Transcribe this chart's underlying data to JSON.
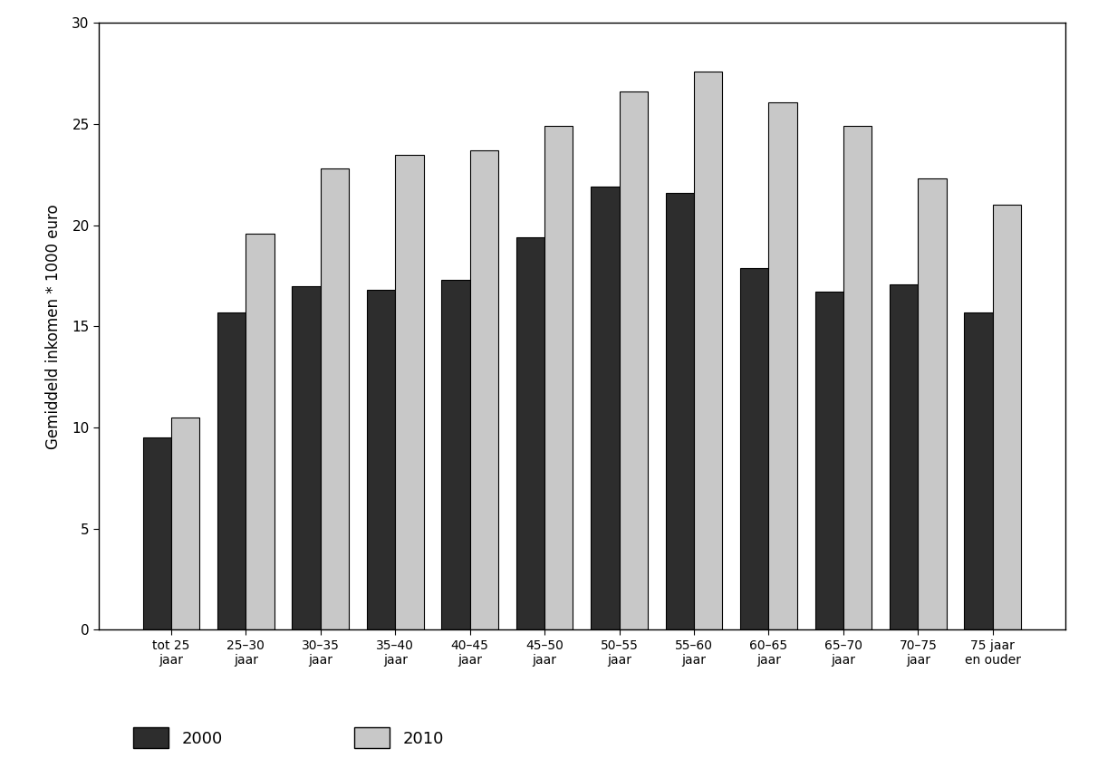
{
  "categories": [
    "tot 25\njaar",
    "25–30\njaar",
    "30–35\njaar",
    "35–40\njaar",
    "40–45\njaar",
    "45–50\njaar",
    "50–55\njaar",
    "55–60\njaar",
    "60–65\njaar",
    "65–70\njaar",
    "70–75\njaar",
    "75 jaar\nen ouder"
  ],
  "values_2000": [
    9.5,
    15.7,
    17.0,
    16.8,
    17.3,
    19.4,
    21.9,
    21.6,
    17.9,
    16.7,
    17.1,
    15.7
  ],
  "values_2010": [
    10.5,
    19.6,
    22.8,
    23.5,
    23.7,
    24.9,
    26.6,
    27.6,
    26.1,
    24.9,
    22.3,
    21.0
  ],
  "color_2000": "#2d2d2d",
  "color_2010": "#c8c8c8",
  "ylabel": "Gemiddeld inkomen * 1000 euro",
  "ylim": [
    0,
    30
  ],
  "yticks": [
    0,
    5,
    10,
    15,
    20,
    25,
    30
  ],
  "legend_2000": "2000",
  "legend_2010": "2010",
  "bar_width": 0.38,
  "background_color": "#ffffff",
  "edge_color": "#000000"
}
